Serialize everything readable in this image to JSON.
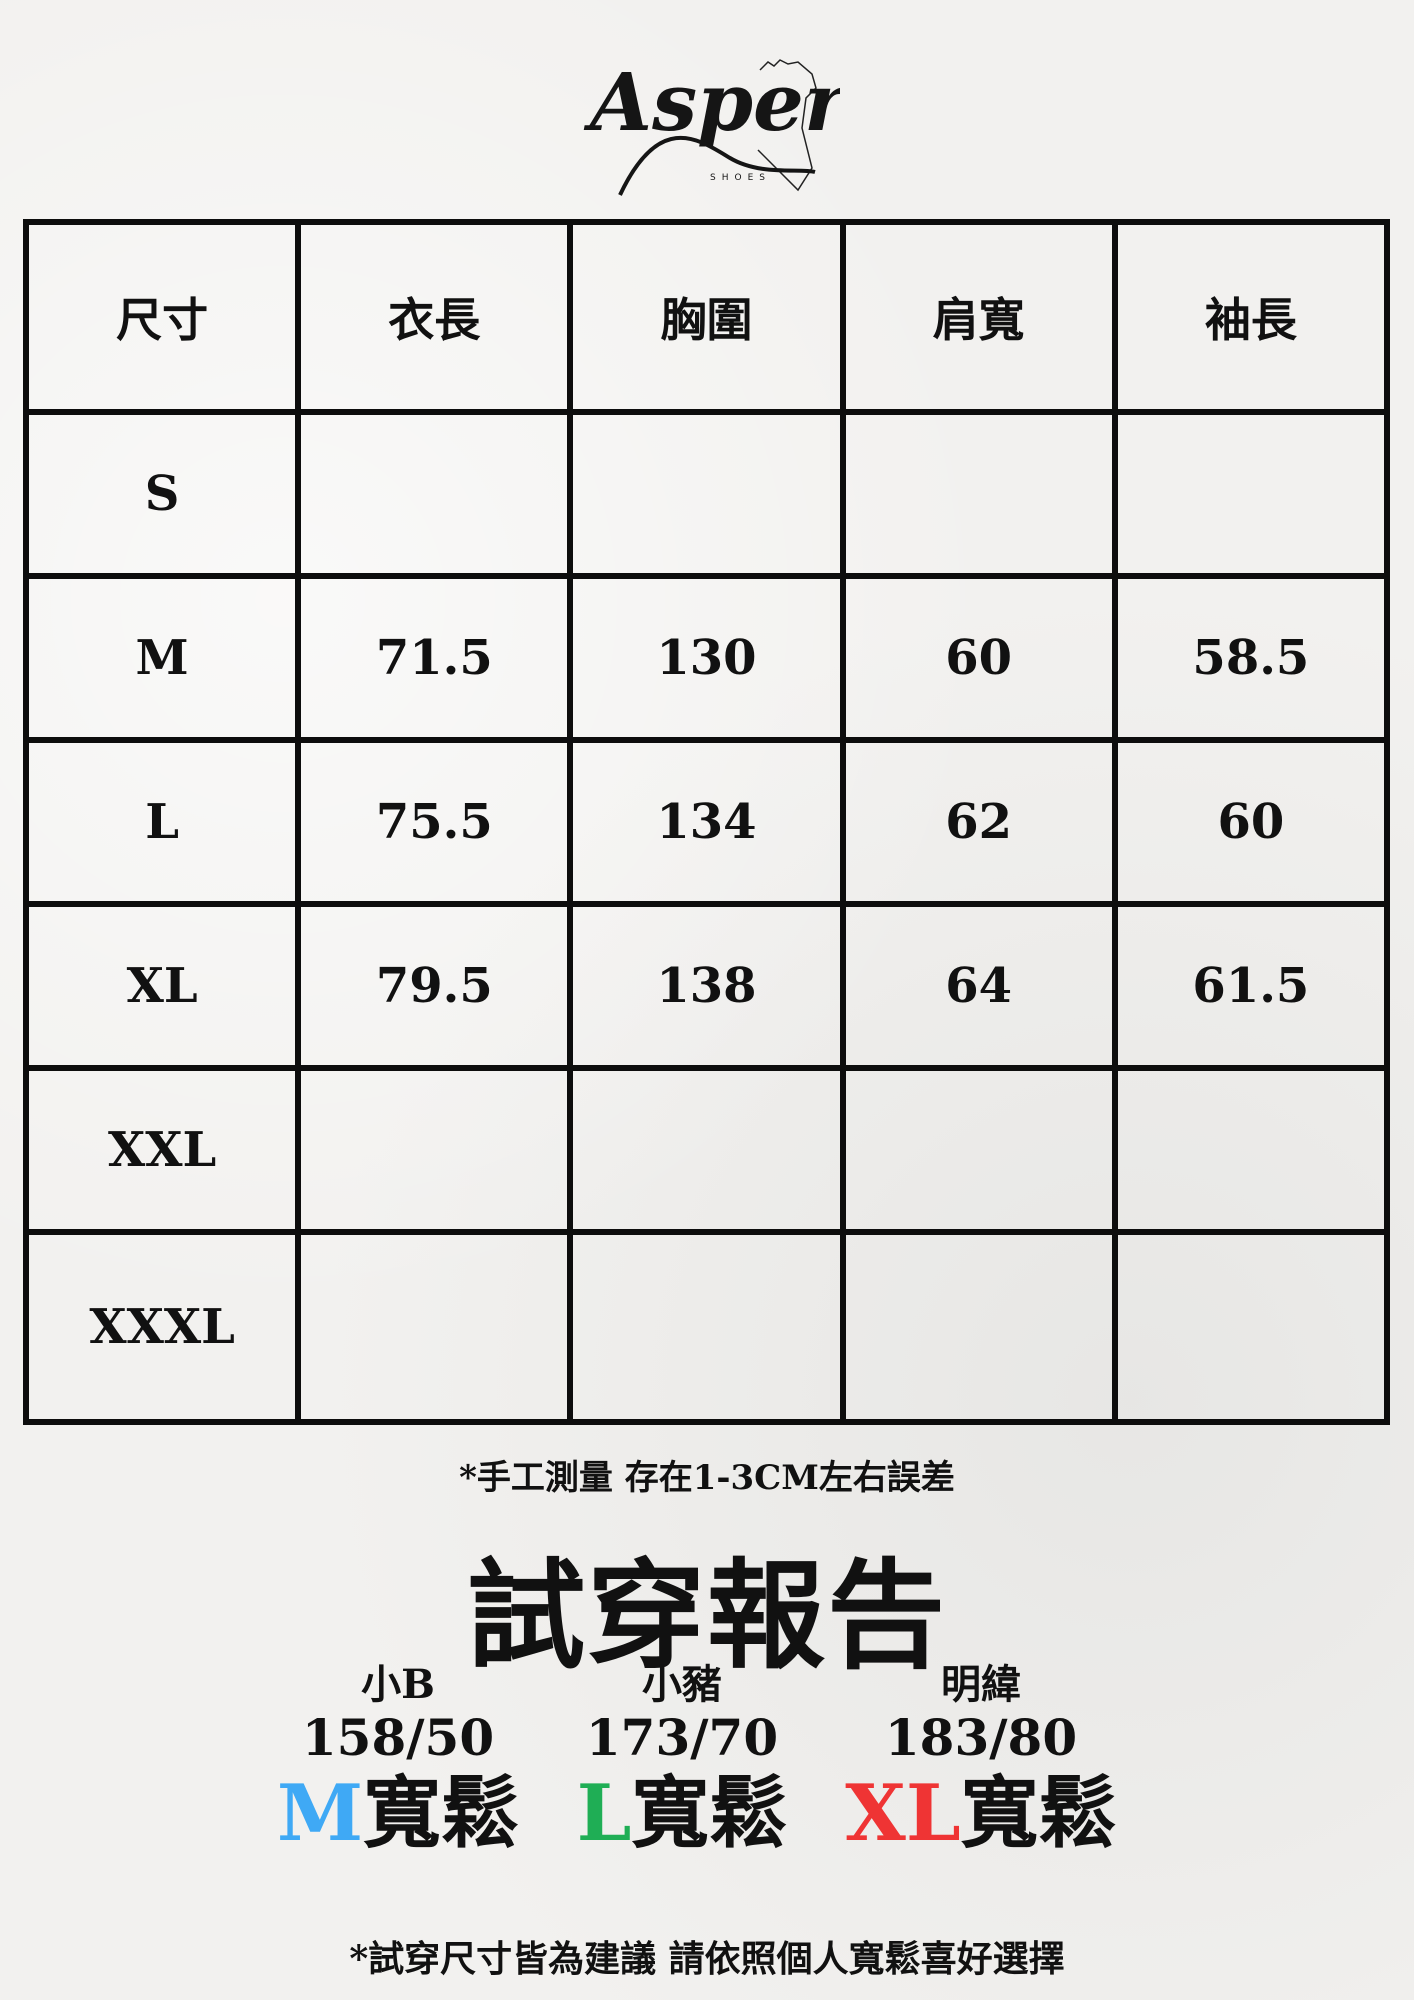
{
  "brand": {
    "logo_text": "Asper",
    "logo_subtext": "SHOES"
  },
  "table": {
    "headers": [
      "尺寸",
      "衣長",
      "胸圍",
      "肩寬",
      "袖長"
    ],
    "rows": [
      [
        "S",
        "",
        "",
        "",
        ""
      ],
      [
        "M",
        "71.5",
        "130",
        "60",
        "58.5"
      ],
      [
        "L",
        "75.5",
        "134",
        "62",
        "60"
      ],
      [
        "XL",
        "79.5",
        "138",
        "64",
        "61.5"
      ],
      [
        "XXL",
        "",
        "",
        "",
        ""
      ],
      [
        "XXXL",
        "",
        "",
        "",
        ""
      ]
    ]
  },
  "note": "*手工測量  存在1-3CM左右誤差",
  "fit_report": {
    "title": "試穿報告",
    "people": [
      {
        "name": "小B",
        "height_weight": "158/50",
        "size": "M",
        "fit": "寬鬆",
        "color": "#3fa9f5"
      },
      {
        "name": "小豬",
        "height_weight": "173/70",
        "size": "L",
        "fit": "寬鬆",
        "color": "#1fae55"
      },
      {
        "name": "明緯",
        "height_weight": "183/80",
        "size": "XL",
        "fit": "寬鬆",
        "color": "#ef3434"
      }
    ]
  },
  "footer": "*試穿尺寸皆為建議  請依照個人寬鬆喜好選擇"
}
